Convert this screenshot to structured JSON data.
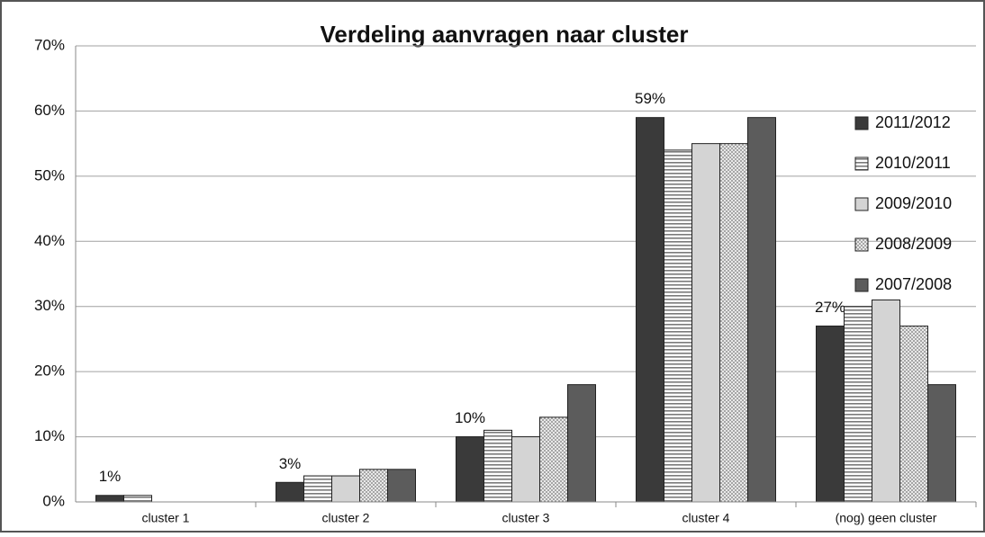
{
  "chart_data": {
    "type": "bar",
    "title": "Verdeling aanvragen naar cluster",
    "categories": [
      "cluster 1",
      "cluster 2",
      "cluster 3",
      "cluster 4",
      "(nog) geen cluster"
    ],
    "series": [
      {
        "name": "2011/2012",
        "color": "#3a3a3a",
        "pattern": "solid",
        "values": [
          1,
          3,
          10,
          59,
          27
        ],
        "value_labels": [
          "1%",
          "3%",
          "10%",
          "59%",
          "27%"
        ]
      },
      {
        "name": "2010/2011",
        "color": "#7a7a7a",
        "pattern": "horizontal-lines",
        "values": [
          1,
          4,
          11,
          54,
          30
        ]
      },
      {
        "name": "2009/2010",
        "color": "#d4d4d4",
        "pattern": "solid",
        "values": [
          0,
          4,
          10,
          55,
          31
        ]
      },
      {
        "name": "2008/2009",
        "color": "#8a8a8a",
        "pattern": "dots",
        "values": [
          0,
          5,
          13,
          55,
          27
        ]
      },
      {
        "name": "2007/2008",
        "color": "#5c5c5c",
        "pattern": "solid",
        "values": [
          0,
          5,
          18,
          59,
          18
        ]
      }
    ],
    "ylim": [
      0,
      70
    ],
    "yticks": [
      {
        "value": 0,
        "label": "0%"
      },
      {
        "value": 10,
        "label": "10%"
      },
      {
        "value": 20,
        "label": "20%"
      },
      {
        "value": 30,
        "label": "30%"
      },
      {
        "value": 40,
        "label": "40%"
      },
      {
        "value": 50,
        "label": "50%"
      },
      {
        "value": 60,
        "label": "60%"
      },
      {
        "value": 70,
        "label": "70%"
      }
    ],
    "grid": true,
    "legend": "right"
  }
}
